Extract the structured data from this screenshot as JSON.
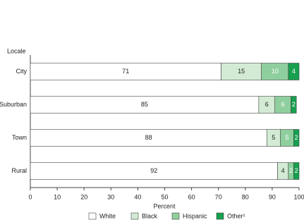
{
  "chart_data": {
    "type": "stacked-bar-horizontal",
    "y_title": "Locale",
    "x_title": "Percent",
    "categories": [
      "City",
      "Suburban",
      "Town",
      "Rural"
    ],
    "series": [
      {
        "name": "White",
        "color": "#ffffff",
        "values": [
          71,
          85,
          88,
          92
        ]
      },
      {
        "name": "Black",
        "color": "#d3ebd5",
        "values": [
          15,
          6,
          5,
          4
        ]
      },
      {
        "name": "Hispanic",
        "color": "#8fcf9e",
        "values": [
          10,
          6,
          5,
          2
        ]
      },
      {
        "name": "Other¹",
        "color": "#17a04f",
        "values": [
          4,
          2,
          2,
          2
        ]
      }
    ],
    "xlim": [
      0,
      100
    ],
    "xticks": [
      0,
      10,
      20,
      30,
      40,
      50,
      60,
      70,
      80,
      90,
      100
    ]
  }
}
